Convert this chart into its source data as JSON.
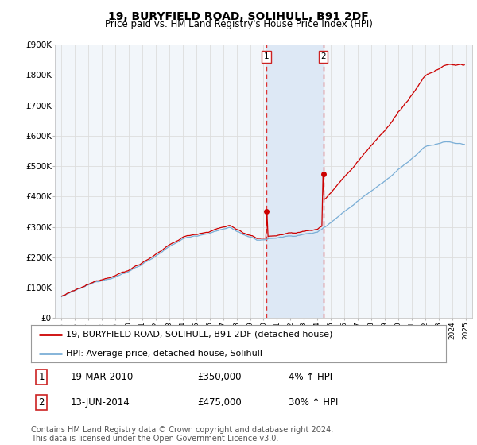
{
  "title": "19, BURYFIELD ROAD, SOLIHULL, B91 2DF",
  "subtitle": "Price paid vs. HM Land Registry's House Price Index (HPI)",
  "ylabel_ticks": [
    "£0",
    "£100K",
    "£200K",
    "£300K",
    "£400K",
    "£500K",
    "£600K",
    "£700K",
    "£800K",
    "£900K"
  ],
  "ylim": [
    0,
    900000
  ],
  "xlim_start": 1994.5,
  "xlim_end": 2025.5,
  "background_color": "#ffffff",
  "plot_bg_color": "#f2f6fa",
  "grid_color": "#dddddd",
  "red_line_color": "#cc0000",
  "blue_line_color": "#7aaed6",
  "dashed_line_color": "#dd3333",
  "highlight_bg_color": "#dde8f5",
  "transaction1_date": "19-MAR-2010",
  "transaction1_price": 350000,
  "transaction1_label": "4% ↑ HPI",
  "transaction1_year": 2010.21,
  "transaction2_date": "13-JUN-2014",
  "transaction2_price": 475000,
  "transaction2_label": "30% ↑ HPI",
  "transaction2_year": 2014.45,
  "legend_line1": "19, BURYFIELD ROAD, SOLIHULL, B91 2DF (detached house)",
  "legend_line2": "HPI: Average price, detached house, Solihull",
  "footer": "Contains HM Land Registry data © Crown copyright and database right 2024.\nThis data is licensed under the Open Government Licence v3.0.",
  "title_fontsize": 10,
  "subtitle_fontsize": 8.5,
  "tick_fontsize": 7.5,
  "legend_fontsize": 8,
  "footer_fontsize": 7
}
